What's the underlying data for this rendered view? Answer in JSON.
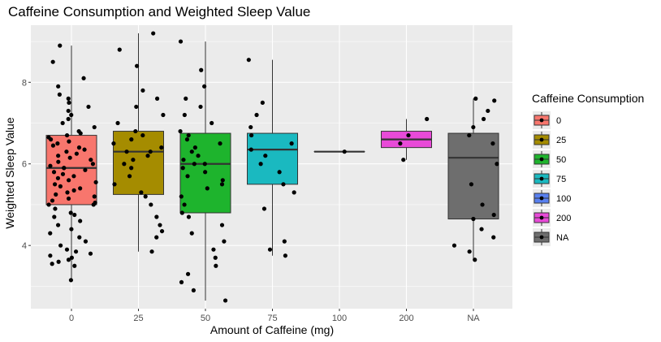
{
  "chart_data": {
    "type": "boxplot",
    "title": "Caffeine Consumption and Weighted Sleep Value",
    "xlabel": "Amount of Caffeine (mg)",
    "ylabel": "Weighted Sleep Value",
    "categories": [
      "0",
      "25",
      "50",
      "75",
      "100",
      "200",
      "NA"
    ],
    "ylim": [
      2.45,
      9.4
    ],
    "y_ticks": [
      4,
      6,
      8
    ],
    "grid": true,
    "jitter_points": true,
    "legend": {
      "title": "Caffeine Consumption",
      "placement": "right",
      "entries": [
        "0",
        "25",
        "50",
        "75",
        "100",
        "200",
        "NA"
      ]
    },
    "colors": {
      "0": "#F8766D",
      "25": "#A58C00",
      "50": "#1EB42D",
      "75": "#1AB9C0",
      "100": "#5880F0",
      "200": "#E84AD8",
      "NA": "#6E6E6E"
    },
    "boxes": [
      {
        "category": "0",
        "min": 3.15,
        "q1": 5.0,
        "median": 5.9,
        "q3": 6.7,
        "max": 8.9,
        "outliers": []
      },
      {
        "category": "25",
        "min": 3.85,
        "q1": 5.25,
        "median": 6.3,
        "q3": 6.8,
        "max": 9.2,
        "outliers": []
      },
      {
        "category": "50",
        "min": 2.65,
        "q1": 4.8,
        "median": 6.0,
        "q3": 6.75,
        "max": 9.0,
        "outliers": []
      },
      {
        "category": "75",
        "min": 3.75,
        "q1": 5.5,
        "median": 6.35,
        "q3": 6.75,
        "max": 8.55,
        "outliers": []
      },
      {
        "category": "100",
        "min": 6.3,
        "q1": 6.3,
        "median": 6.3,
        "q3": 6.3,
        "max": 6.3,
        "outliers": []
      },
      {
        "category": "200",
        "min": 6.1,
        "q1": 6.4,
        "median": 6.6,
        "q3": 6.8,
        "max": 7.1,
        "outliers": []
      },
      {
        "category": "NA",
        "min": 3.65,
        "q1": 4.65,
        "median": 6.15,
        "q3": 6.75,
        "max": 7.6,
        "outliers": []
      }
    ],
    "points": {
      "0": [
        3.15,
        3.5,
        3.55,
        3.6,
        3.65,
        3.7,
        3.75,
        3.8,
        3.85,
        3.9,
        4.0,
        4.1,
        4.2,
        4.3,
        4.4,
        4.5,
        4.6,
        4.7,
        4.75,
        4.8,
        4.9,
        5.0,
        5.0,
        5.05,
        5.1,
        5.15,
        5.2,
        5.25,
        5.3,
        5.35,
        5.4,
        5.45,
        5.5,
        5.55,
        5.6,
        5.65,
        5.7,
        5.75,
        5.8,
        5.85,
        5.9,
        5.9,
        5.95,
        6.0,
        6.05,
        6.1,
        6.15,
        6.2,
        6.25,
        6.3,
        6.35,
        6.4,
        6.45,
        6.5,
        6.55,
        6.6,
        6.65,
        6.7,
        6.75,
        6.8,
        6.9,
        7.0,
        7.1,
        7.2,
        7.3,
        7.4,
        7.5,
        7.6,
        7.7,
        7.9,
        8.1,
        8.5,
        8.9
      ],
      "25": [
        3.85,
        4.2,
        4.35,
        4.5,
        4.7,
        5.0,
        5.2,
        5.3,
        5.5,
        5.7,
        5.9,
        6.0,
        6.1,
        6.2,
        6.3,
        6.3,
        6.4,
        6.5,
        6.6,
        6.7,
        6.8,
        7.0,
        7.2,
        7.4,
        7.6,
        7.8,
        8.4,
        8.8,
        9.2
      ],
      "50": [
        2.65,
        2.9,
        3.1,
        3.3,
        3.5,
        3.7,
        3.9,
        4.1,
        4.3,
        4.5,
        4.7,
        4.8,
        5.0,
        5.2,
        5.4,
        5.5,
        5.6,
        5.7,
        5.8,
        5.9,
        6.0,
        6.0,
        6.1,
        6.2,
        6.3,
        6.4,
        6.5,
        6.6,
        6.7,
        6.8,
        7.0,
        7.2,
        7.4,
        7.6,
        7.9,
        8.3,
        9.0
      ],
      "75": [
        3.75,
        3.9,
        4.1,
        4.9,
        5.3,
        5.5,
        5.8,
        6.0,
        6.2,
        6.35,
        6.5,
        6.7,
        6.9,
        7.2,
        7.5,
        8.55
      ],
      "100": [
        6.3
      ],
      "200": [
        6.1,
        6.5,
        6.7,
        7.1
      ],
      "NA": [
        3.65,
        3.85,
        4.0,
        4.2,
        4.4,
        4.65,
        4.75,
        5.0,
        5.5,
        6.0,
        6.5,
        6.7,
        6.9,
        7.1,
        7.3,
        7.55,
        7.6
      ]
    }
  }
}
